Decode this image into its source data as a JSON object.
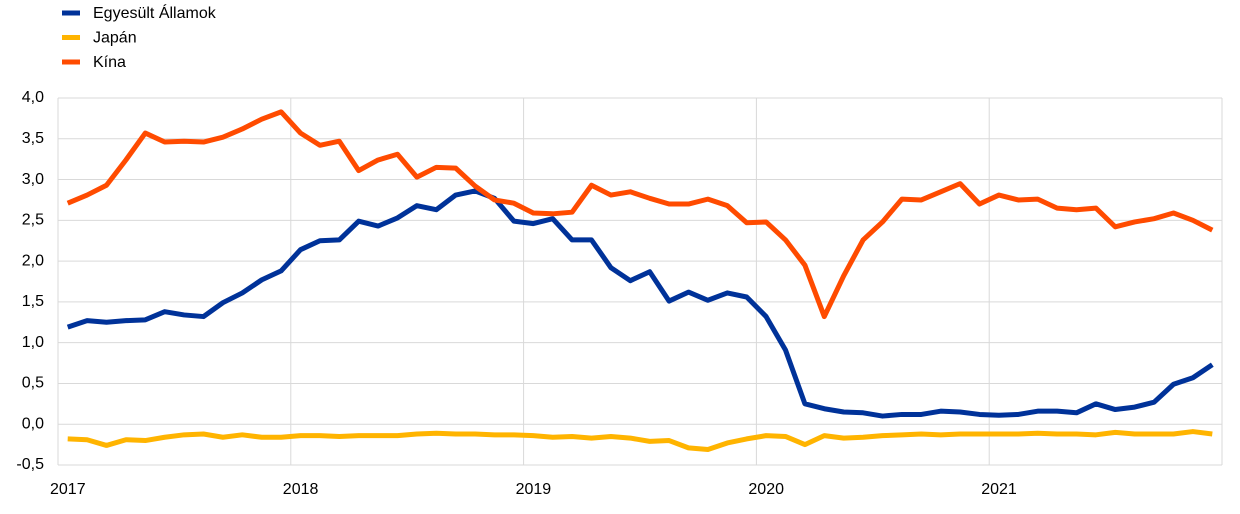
{
  "chart_data": {
    "type": "line",
    "categories": [
      "2017",
      null,
      null,
      null,
      null,
      null,
      null,
      null,
      null,
      null,
      null,
      null,
      "2018",
      null,
      null,
      null,
      null,
      null,
      null,
      null,
      null,
      null,
      null,
      null,
      "2019",
      null,
      null,
      null,
      null,
      null,
      null,
      null,
      null,
      null,
      null,
      null,
      "2020",
      null,
      null,
      null,
      null,
      null,
      null,
      null,
      null,
      null,
      null,
      null,
      "2021",
      null,
      null,
      null,
      null,
      null,
      null,
      null,
      null,
      null,
      null,
      null
    ],
    "series": [
      {
        "name": "Egyesült Államok",
        "color": "#003299",
        "values": [
          1.19,
          1.27,
          1.25,
          1.27,
          1.28,
          1.38,
          1.34,
          1.32,
          1.49,
          1.61,
          1.77,
          1.88,
          2.14,
          2.25,
          2.26,
          2.49,
          2.43,
          2.53,
          2.68,
          2.63,
          2.81,
          2.86,
          2.77,
          2.49,
          2.46,
          2.52,
          2.26,
          2.26,
          1.92,
          1.76,
          1.87,
          1.51,
          1.62,
          1.52,
          1.61,
          1.56,
          1.32,
          0.91,
          0.25,
          0.19,
          0.15,
          0.14,
          0.1,
          0.12,
          0.12,
          0.16,
          0.15,
          0.12,
          0.11,
          0.12,
          0.16,
          0.16,
          0.14,
          0.25,
          0.18,
          0.21,
          0.27,
          0.49,
          0.57,
          0.73
        ]
      },
      {
        "name": "Japán",
        "color": "#ffb400",
        "values": [
          -0.18,
          -0.19,
          -0.26,
          -0.19,
          -0.2,
          -0.16,
          -0.13,
          -0.12,
          -0.16,
          -0.13,
          -0.16,
          -0.16,
          -0.14,
          -0.14,
          -0.15,
          -0.14,
          -0.14,
          -0.14,
          -0.12,
          -0.11,
          -0.12,
          -0.12,
          -0.13,
          -0.13,
          -0.14,
          -0.16,
          -0.15,
          -0.17,
          -0.15,
          -0.17,
          -0.21,
          -0.2,
          -0.29,
          -0.31,
          -0.23,
          -0.18,
          -0.14,
          -0.15,
          -0.25,
          -0.14,
          -0.17,
          -0.16,
          -0.14,
          -0.13,
          -0.12,
          -0.13,
          -0.12,
          -0.12,
          -0.12,
          -0.12,
          -0.11,
          -0.12,
          -0.12,
          -0.13,
          -0.1,
          -0.12,
          -0.12,
          -0.12,
          -0.09,
          -0.12
        ]
      },
      {
        "name": "Kína",
        "color": "#ff4b00",
        "values": [
          2.71,
          2.81,
          2.93,
          3.24,
          3.57,
          3.46,
          3.47,
          3.46,
          3.52,
          3.62,
          3.74,
          3.83,
          3.57,
          3.42,
          3.47,
          3.11,
          3.24,
          3.31,
          3.03,
          3.15,
          3.14,
          2.92,
          2.75,
          2.71,
          2.59,
          2.58,
          2.6,
          2.93,
          2.81,
          2.85,
          2.77,
          2.7,
          2.7,
          2.76,
          2.68,
          2.47,
          2.48,
          2.26,
          1.95,
          1.32,
          1.82,
          2.26,
          2.48,
          2.76,
          2.75,
          2.85,
          2.95,
          2.7,
          2.81,
          2.75,
          2.76,
          2.65,
          2.63,
          2.65,
          2.42,
          2.48,
          2.52,
          2.59,
          2.5,
          2.38
        ]
      }
    ],
    "ylim": [
      -0.5,
      4.0
    ],
    "yticks": [
      {
        "value": -0.5,
        "label": "-0,5"
      },
      {
        "value": 0,
        "label": "0,0"
      },
      {
        "value": 0.5,
        "label": "0,5"
      },
      {
        "value": 1,
        "label": "1,0"
      },
      {
        "value": 1.5,
        "label": "1,5"
      },
      {
        "value": 2,
        "label": "2,0"
      },
      {
        "value": 2.5,
        "label": "2,5"
      },
      {
        "value": 3,
        "label": "3,0"
      },
      {
        "value": 3.5,
        "label": "3,5"
      },
      {
        "value": 4,
        "label": "4,0"
      }
    ],
    "grid": true,
    "legend": "top-left"
  }
}
